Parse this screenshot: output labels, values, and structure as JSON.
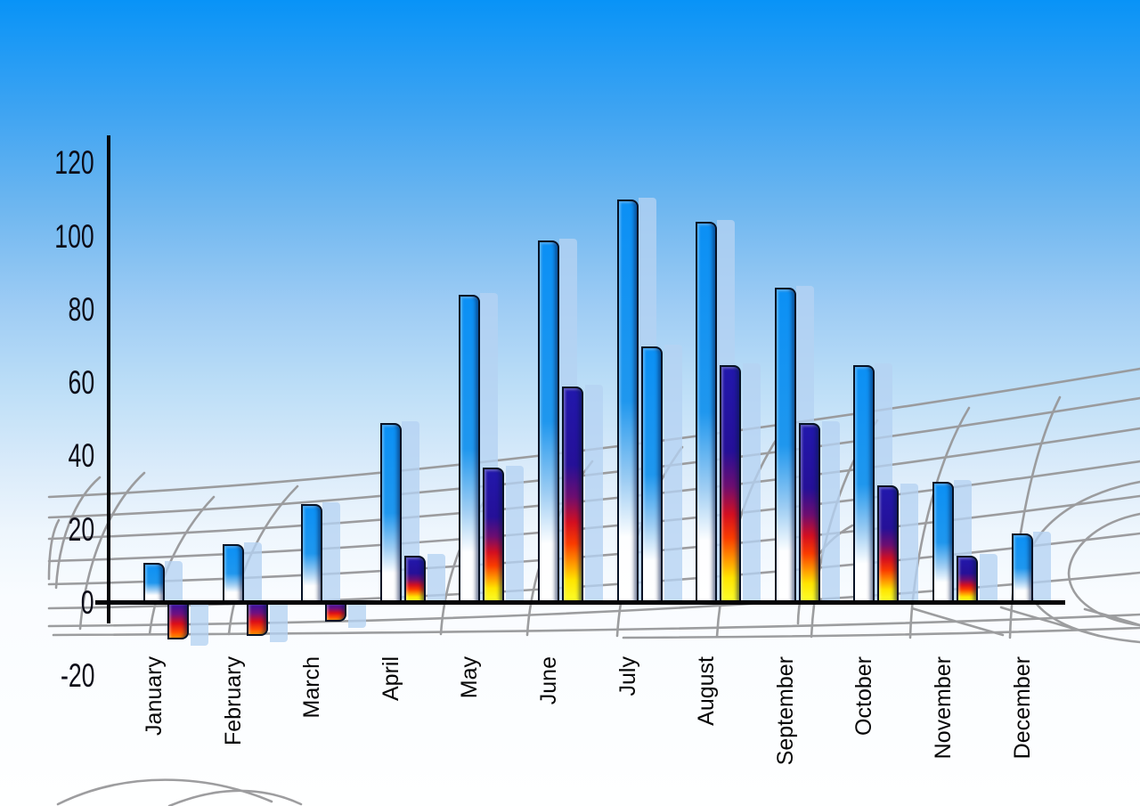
{
  "chart_data": {
    "type": "bar",
    "title": "",
    "xlabel": "",
    "ylabel": "",
    "categories": [
      "January",
      "February",
      "March",
      "April",
      "May",
      "June",
      "July",
      "August",
      "September",
      "October",
      "November",
      "December"
    ],
    "y_tick_labels": [
      "120",
      "100",
      "80",
      "60",
      "40",
      "20",
      "0",
      "-20"
    ],
    "y_tick_values": [
      120,
      100,
      80,
      60,
      40,
      20,
      0,
      -20
    ],
    "ylim": [
      -20,
      120
    ],
    "grid": true,
    "legend": false,
    "x_labels_rotation_degrees": -90,
    "series": [
      {
        "name": "primary-blue-bars",
        "values": [
          11,
          16,
          27,
          49,
          84,
          99,
          110,
          104,
          86,
          65,
          33,
          19
        ],
        "variants": [
          "blue",
          "blue",
          "blue",
          "blue",
          "blue",
          "blue",
          "blue",
          "blue",
          "blue",
          "blue",
          "blue",
          "blue"
        ]
      },
      {
        "name": "secondary-accent-bars",
        "values": [
          -10,
          -9,
          -5,
          13,
          37,
          59,
          70,
          65,
          49,
          32,
          13,
          null
        ],
        "variants": [
          "fire",
          "fire",
          "fire",
          "fire",
          "fire",
          "fire",
          "blue",
          "fire",
          "fire",
          "fire",
          "fire",
          null
        ]
      }
    ]
  },
  "colors": {
    "sky_top": "#0893F7",
    "sky_bottom": "#FEFFFF",
    "bar_blue": "#1F97EE",
    "bar_fire_navy": "#251098",
    "bar_fire_red": "#D40F20",
    "bar_fire_yellow": "#FBFF2A",
    "bar_echo": "#B5D2F2",
    "axis": "#050508",
    "grid_line": "#98989A",
    "tick_text": "#0C0C18",
    "month_text": "#060606"
  }
}
